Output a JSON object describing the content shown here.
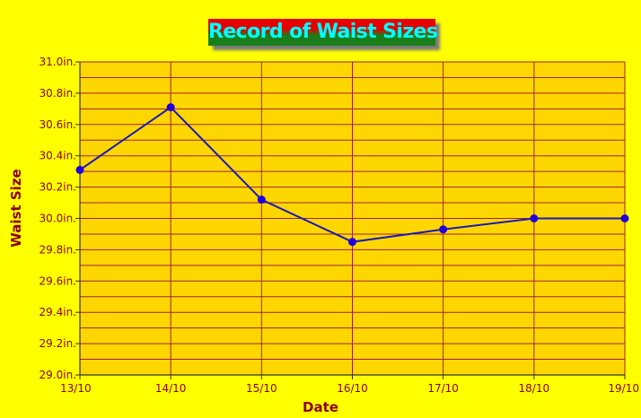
{
  "chart_data": {
    "type": "line",
    "title": "Record of Waist Sizes",
    "xlabel": "Date",
    "ylabel": "Waist Size",
    "categories": [
      "13/10",
      "14/10",
      "15/10",
      "16/10",
      "17/10",
      "18/10",
      "19/10"
    ],
    "series": [
      {
        "values": [
          30.31,
          30.71,
          30.12,
          29.85,
          29.93,
          30.0,
          30.0
        ]
      }
    ],
    "ylim": [
      29.0,
      31.0
    ],
    "yticks": [
      "29.0in.",
      "29.2in.",
      "29.4in.",
      "29.6in.",
      "29.8in.",
      "30.0in.",
      "30.2in.",
      "30.4in.",
      "30.6in.",
      "30.8in.",
      "31.0in."
    ],
    "grid": true,
    "legend": "none"
  },
  "colors": {
    "page_background": "#ffff00",
    "plot_background": "#ffd700",
    "grid": "#a0203a",
    "line": "#1a1ab8",
    "marker": "#2200dd",
    "text": "#8b0000",
    "title_text": "#00ffff"
  }
}
